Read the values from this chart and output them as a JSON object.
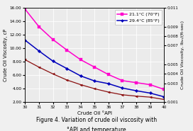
{
  "x": [
    30,
    31,
    32,
    33,
    34,
    35,
    36,
    37,
    38,
    39,
    40
  ],
  "y_pink": [
    15.8,
    13.2,
    11.3,
    9.75,
    8.3,
    7.2,
    6.1,
    5.2,
    4.9,
    4.6,
    3.9
  ],
  "y_blue": [
    11.2,
    9.6,
    8.1,
    7.0,
    5.9,
    5.15,
    4.75,
    4.1,
    3.7,
    3.35,
    2.8
  ],
  "y_red": [
    8.3,
    7.2,
    6.2,
    5.3,
    4.6,
    4.0,
    3.5,
    3.1,
    2.9,
    2.75,
    2.4
  ],
  "color_pink": "#FF00CC",
  "color_blue": "#0000BB",
  "color_red": "#8B1010",
  "label_pink": "21.1°C (70°F)",
  "label_blue": "29.4°C (85°F)",
  "xlabel": "Crude Oil °API",
  "ylabel_left": "Crude Oil Viscosity, cP",
  "ylabel_right": "Crude Oil Viscosity, lbₘ/(ft-sec)",
  "title_line1": "Figure 4. Variation of crude oil viscosity with",
  "title_line2": "°API and temperature",
  "xlim": [
    30,
    40
  ],
  "ylim_left": [
    2.0,
    16.0
  ],
  "ylim_right": [
    0.001,
    0.011
  ],
  "yticks_left": [
    2.0,
    4.0,
    6.0,
    8.0,
    10.0,
    12.0,
    14.0,
    16.0
  ],
  "yticks_right": [
    0.001,
    0.003,
    0.004,
    0.005,
    0.007,
    0.008,
    0.009,
    0.011
  ],
  "xticks": [
    30,
    31,
    32,
    33,
    34,
    35,
    36,
    37,
    38,
    39,
    40
  ],
  "bg_color": "#EBEBEB",
  "grid_color": "#FFFFFF",
  "fig_color": "#F0F0F0"
}
